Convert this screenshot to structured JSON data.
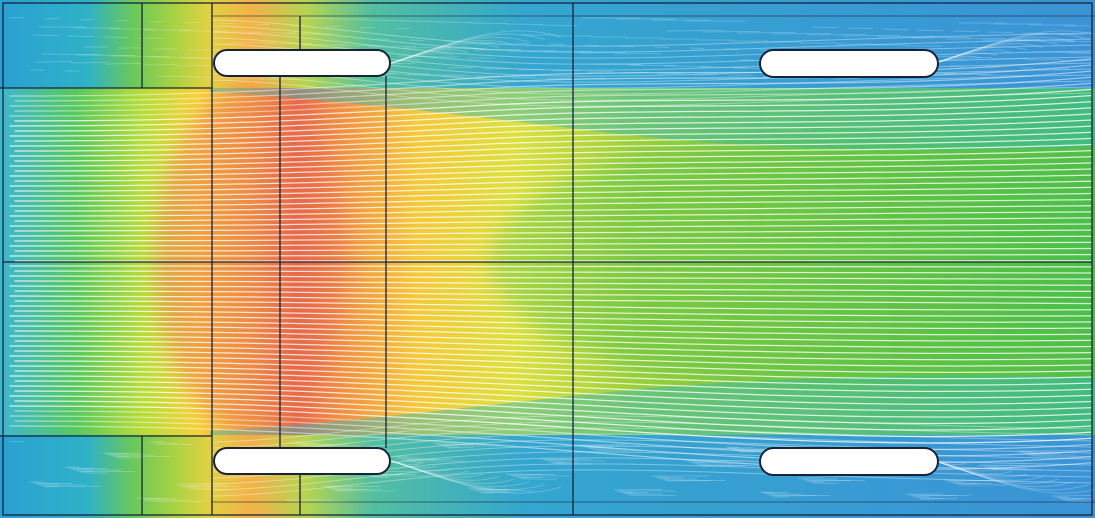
{
  "figure": {
    "kind": "cfd-streamline-velocity-contour",
    "text": []
  },
  "colors": {
    "slow": "#3b93d6",
    "low": "#35a8cf",
    "teal": "#22b6a9",
    "green": "#4fbe49",
    "light_green": "#8ccc3a",
    "yellow": "#f6d23a",
    "orange": "#f3a03a",
    "fast": "#e6694a",
    "streamline": "#ffffff",
    "outline": "#18233a",
    "obstacle_fill": "#ffffff"
  },
  "regions": {
    "inlet_jet": "inlet-jet",
    "upper_inlet_step": "upper-inlet-step",
    "lower_inlet_step": "lower-inlet-step",
    "duct_core": "duct-core",
    "upper_wall_zone": "upper-wall-zone",
    "lower_wall_zone": "lower-wall-zone"
  },
  "obstacles": [
    "upper-left-plate",
    "upper-right-plate",
    "lower-left-plate",
    "lower-right-plate"
  ],
  "streamlines": {
    "dominant_direction": "left-to-right",
    "density": "high"
  }
}
